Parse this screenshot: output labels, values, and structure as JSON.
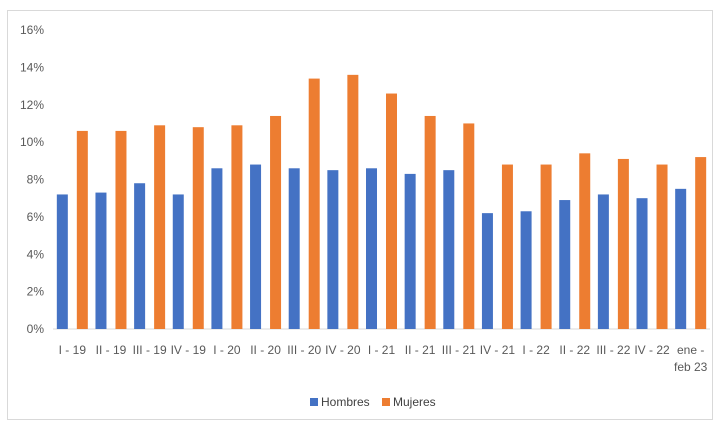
{
  "chart_data": {
    "type": "bar",
    "title": "",
    "xlabel": "",
    "ylabel": "",
    "ylim": [
      0,
      16
    ],
    "yticks": [
      "0%",
      "2%",
      "4%",
      "6%",
      "8%",
      "10%",
      "12%",
      "14%",
      "16%"
    ],
    "grid": false,
    "legend_position": "bottom",
    "categories": [
      [
        "I - 19"
      ],
      [
        "II - 19"
      ],
      [
        "III - 19"
      ],
      [
        "IV - 19"
      ],
      [
        "I - 20"
      ],
      [
        "II - 20"
      ],
      [
        "III - 20"
      ],
      [
        "IV - 20"
      ],
      [
        "I - 21"
      ],
      [
        "II - 21"
      ],
      [
        "III - 21"
      ],
      [
        "IV - 21"
      ],
      [
        "I - 22"
      ],
      [
        "II - 22"
      ],
      [
        "III - 22"
      ],
      [
        "IV - 22"
      ],
      [
        "ene -",
        "feb 23"
      ]
    ],
    "series": [
      {
        "name": "Hombres",
        "color": "#4472c4",
        "values": [
          7.2,
          7.3,
          7.8,
          7.2,
          8.6,
          8.8,
          8.6,
          8.5,
          8.6,
          8.3,
          8.5,
          6.2,
          6.3,
          6.9,
          7.2,
          7.0,
          7.5
        ]
      },
      {
        "name": "Mujeres",
        "color": "#ed7d31",
        "values": [
          10.6,
          10.6,
          10.9,
          10.8,
          10.9,
          11.4,
          13.4,
          13.6,
          12.6,
          11.4,
          11.0,
          8.8,
          8.8,
          9.4,
          9.1,
          8.8,
          9.2
        ]
      }
    ]
  }
}
